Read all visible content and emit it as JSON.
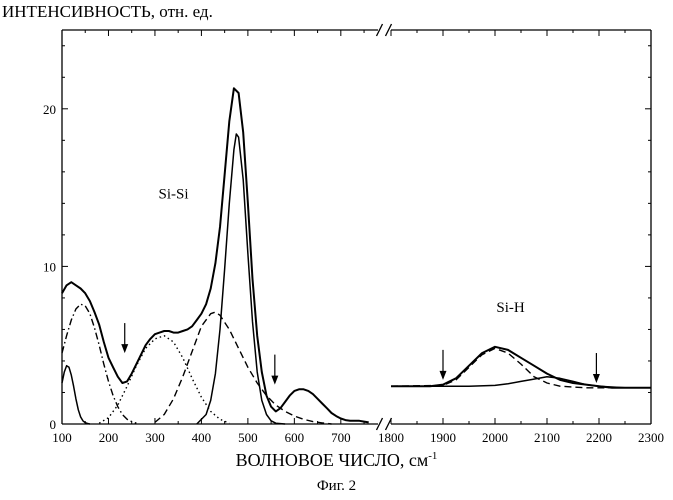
{
  "chart_data": {
    "type": "line",
    "title": "",
    "ylabel": "ИНТЕНСИВНОСТЬ, отн. ед.",
    "xlabel": "ВОЛНОВОЕ ЧИСЛО, см",
    "xlabel_sup": "-1",
    "caption": "Фиг. 2",
    "ylim": [
      0,
      25
    ],
    "yticks": [
      0,
      10,
      20
    ],
    "grid": false,
    "legend": "none",
    "panels": [
      {
        "xlim": [
          100,
          780
        ],
        "xticks": [
          100,
          200,
          300,
          400,
          500,
          600,
          700
        ]
      },
      {
        "xlim": [
          1800,
          2300
        ],
        "xticks": [
          1800,
          1900,
          2000,
          2100,
          2200,
          2300
        ]
      }
    ],
    "annotations": [
      {
        "text": "Si-Si",
        "x": 340,
        "y": 14.3,
        "panel": 0
      },
      {
        "text": "Si-H",
        "x": 2030,
        "y": 7.1,
        "panel": 1
      }
    ],
    "arrows": [
      {
        "x": 235,
        "y_tip": 4.5,
        "panel": 0
      },
      {
        "x": 558,
        "y_tip": 2.5,
        "panel": 0
      },
      {
        "x": 1900,
        "y_tip": 2.8,
        "panel": 1
      },
      {
        "x": 2195,
        "y_tip": 2.6,
        "panel": 1
      }
    ],
    "series": [
      {
        "style": "measured",
        "panel": 0,
        "x": [
          100,
          110,
          120,
          130,
          140,
          150,
          160,
          170,
          180,
          190,
          200,
          210,
          220,
          230,
          240,
          250,
          260,
          270,
          280,
          290,
          300,
          310,
          320,
          330,
          340,
          350,
          360,
          370,
          380,
          390,
          400,
          410,
          420,
          430,
          440,
          450,
          460,
          470,
          480,
          490,
          500,
          510,
          520,
          530,
          540,
          550,
          560,
          570,
          580,
          590,
          600,
          610,
          620,
          630,
          640,
          650,
          660,
          670,
          680,
          690,
          700,
          710,
          720,
          730,
          740,
          750,
          760
        ],
        "y": [
          8.3,
          8.8,
          9.0,
          8.8,
          8.6,
          8.3,
          7.8,
          7.1,
          6.3,
          5.2,
          4.2,
          3.6,
          3.0,
          2.6,
          2.7,
          3.2,
          3.8,
          4.4,
          5.0,
          5.4,
          5.7,
          5.8,
          5.9,
          5.9,
          5.8,
          5.8,
          5.9,
          6.0,
          6.2,
          6.6,
          7.0,
          7.6,
          8.6,
          10.2,
          12.5,
          15.8,
          19.2,
          21.3,
          21.0,
          18.5,
          14.0,
          9.2,
          5.6,
          3.3,
          1.8,
          1.1,
          0.8,
          1.0,
          1.4,
          1.8,
          2.1,
          2.2,
          2.2,
          2.1,
          1.9,
          1.6,
          1.3,
          1.0,
          0.7,
          0.5,
          0.35,
          0.25,
          0.2,
          0.2,
          0.2,
          0.15,
          0.1
        ]
      },
      {
        "style": "measured",
        "panel": 1,
        "x": [
          1800,
          1825,
          1850,
          1875,
          1900,
          1925,
          1950,
          1975,
          2000,
          2025,
          2050,
          2075,
          2100,
          2125,
          2150,
          2175,
          2200,
          2225,
          2250,
          2275,
          2300
        ],
        "y": [
          2.4,
          2.4,
          2.4,
          2.4,
          2.5,
          2.9,
          3.7,
          4.5,
          4.9,
          4.7,
          4.2,
          3.7,
          3.2,
          2.8,
          2.6,
          2.5,
          2.4,
          2.3,
          2.3,
          2.3,
          2.3
        ]
      },
      {
        "style": "fit-solid",
        "panel": 0,
        "x": [
          100,
          105,
          110,
          115,
          120,
          125,
          130,
          135,
          140,
          145,
          150,
          155,
          160
        ],
        "y": [
          2.6,
          3.3,
          3.7,
          3.6,
          3.1,
          2.4,
          1.6,
          0.9,
          0.45,
          0.2,
          0.08,
          0.03,
          0.0
        ]
      },
      {
        "style": "fit-dashdot",
        "panel": 0,
        "x": [
          100,
          110,
          120,
          130,
          140,
          150,
          160,
          170,
          180,
          190,
          200,
          210,
          220,
          230,
          240,
          250,
          260
        ],
        "y": [
          4.5,
          5.6,
          6.6,
          7.3,
          7.6,
          7.5,
          7.0,
          6.1,
          5.0,
          3.8,
          2.7,
          1.8,
          1.1,
          0.6,
          0.3,
          0.15,
          0.05
        ]
      },
      {
        "style": "fit-dotted",
        "panel": 0,
        "x": [
          180,
          200,
          220,
          240,
          260,
          280,
          300,
          320,
          340,
          360,
          380,
          400,
          420,
          440,
          460
        ],
        "y": [
          0.05,
          0.4,
          1.2,
          2.4,
          3.7,
          4.8,
          5.4,
          5.6,
          5.2,
          4.2,
          2.9,
          1.7,
          0.8,
          0.3,
          0.05
        ]
      },
      {
        "style": "fit-dashed",
        "panel": 0,
        "x": [
          300,
          320,
          340,
          360,
          380,
          400,
          420,
          430,
          440,
          460,
          480,
          500,
          520,
          540,
          560,
          580,
          600,
          620,
          640,
          660,
          680
        ],
        "y": [
          0.1,
          0.6,
          1.6,
          3.0,
          4.6,
          6.2,
          7.0,
          7.1,
          6.9,
          6.0,
          4.8,
          3.6,
          2.6,
          1.8,
          1.2,
          0.8,
          0.5,
          0.3,
          0.15,
          0.07,
          0.0
        ]
      },
      {
        "style": "fit-solid",
        "panel": 0,
        "x": [
          390,
          410,
          420,
          430,
          440,
          450,
          460,
          470,
          475,
          480,
          490,
          500,
          510,
          520,
          530,
          540,
          550,
          560,
          580
        ],
        "y": [
          0.0,
          0.6,
          1.5,
          3.2,
          6.0,
          9.8,
          14.0,
          17.4,
          18.4,
          18.2,
          15.5,
          10.8,
          6.5,
          3.3,
          1.5,
          0.6,
          0.2,
          0.05,
          0.0
        ]
      },
      {
        "style": "fit-solid",
        "panel": 1,
        "x": [
          1800,
          1950,
          2000,
          2025,
          2050,
          2075,
          2100,
          2125,
          2150,
          2175,
          2200,
          2250,
          2300
        ],
        "y": [
          2.4,
          2.4,
          2.45,
          2.55,
          2.7,
          2.85,
          3.0,
          2.9,
          2.7,
          2.5,
          2.4,
          2.3,
          2.3
        ]
      },
      {
        "style": "fit-dashed",
        "panel": 1,
        "x": [
          1800,
          1900,
          1925,
          1950,
          1975,
          2000,
          2025,
          2050,
          2075,
          2100,
          2125,
          2150,
          2175,
          2200,
          2300
        ],
        "y": [
          2.4,
          2.45,
          2.8,
          3.6,
          4.4,
          4.8,
          4.5,
          3.8,
          3.0,
          2.6,
          2.4,
          2.35,
          2.3,
          2.3,
          2.3
        ]
      }
    ]
  }
}
